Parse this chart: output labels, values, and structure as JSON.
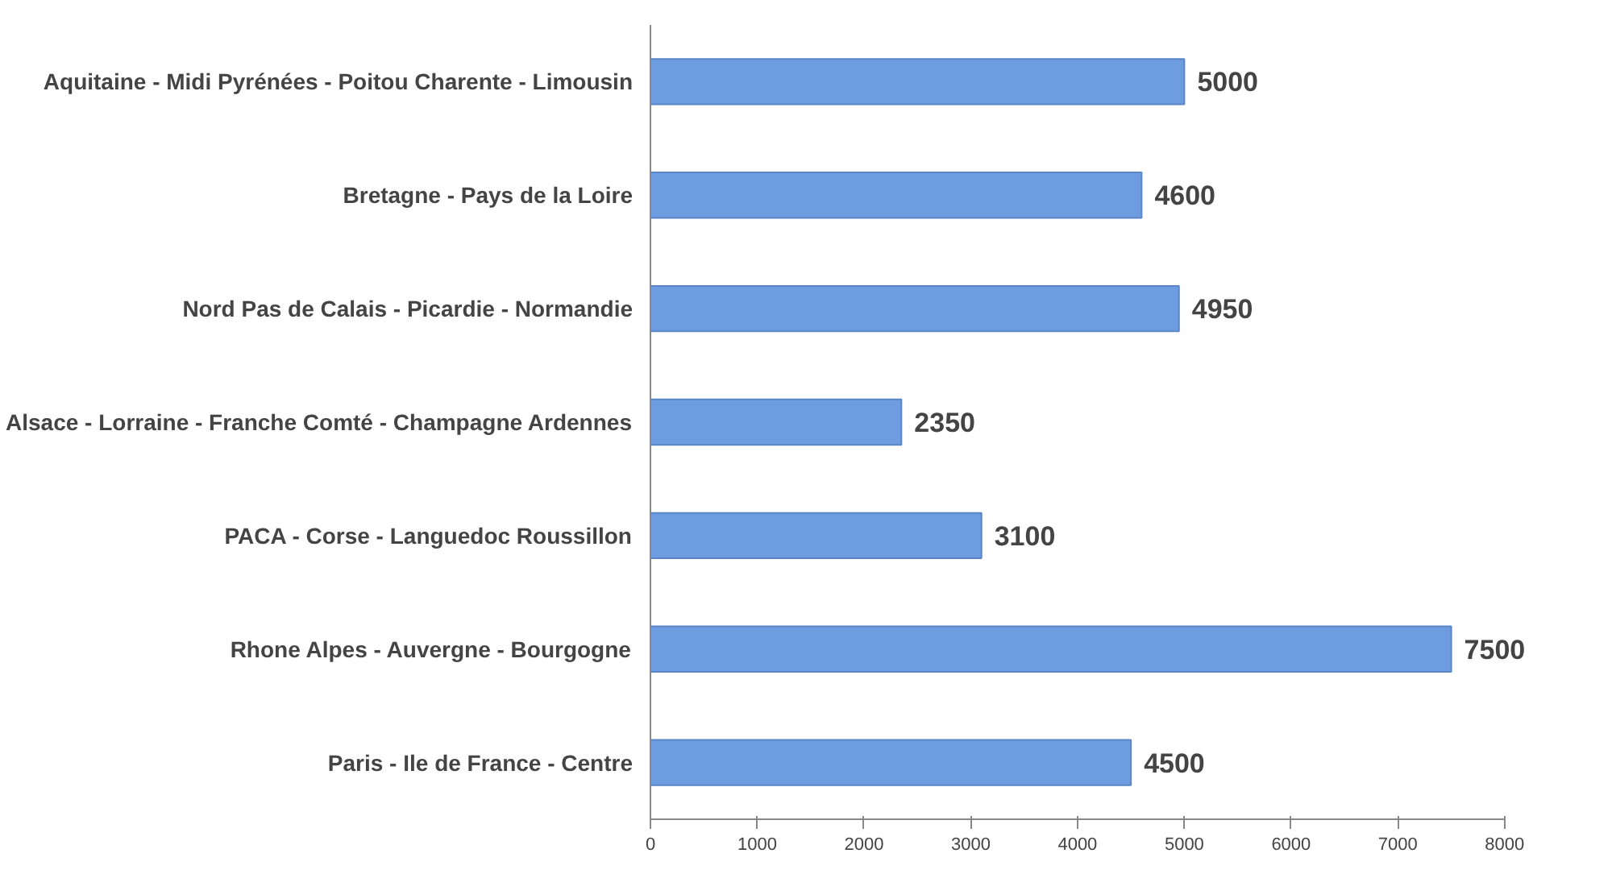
{
  "chart_data": {
    "type": "bar",
    "orientation": "horizontal",
    "categories": [
      "Aquitaine - Midi Pyrénées - Poitou Charente - Limousin",
      "Bretagne - Pays de la Loire",
      "Nord Pas de Calais - Picardie - Normandie",
      "Alsace - Lorraine - Franche Comté - Champagne Ardennes",
      "PACA - Corse - Languedoc Roussillon",
      "Rhone Alpes - Auvergne - Bourgogne",
      "Paris - Ile de France - Centre"
    ],
    "values": [
      5000,
      4600,
      4950,
      2350,
      3100,
      7500,
      4500
    ],
    "color": "#6d9ce0",
    "xlim": [
      0,
      8000
    ],
    "xticks": [
      0,
      1000,
      2000,
      3000,
      4000,
      5000,
      6000,
      7000,
      8000
    ],
    "grid": false,
    "data_labels": true
  }
}
